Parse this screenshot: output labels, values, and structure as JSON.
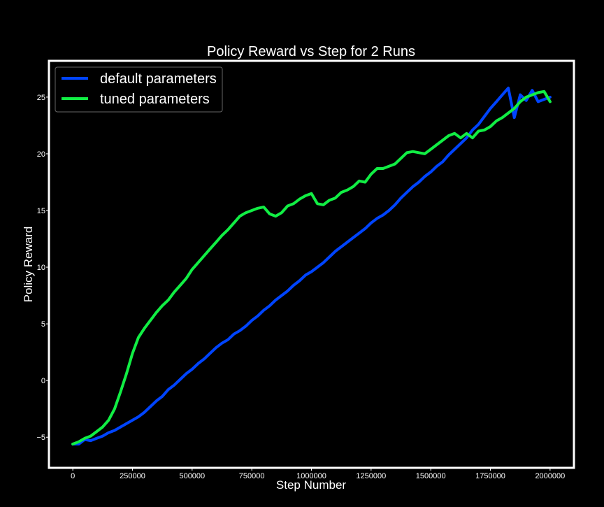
{
  "chart_data": {
    "type": "line",
    "title": "Policy Reward vs Step for 2 Runs",
    "xlabel": "Step Number",
    "ylabel": "Policy Reward",
    "xlim": [
      -100000,
      2100000
    ],
    "ylim": [
      -7.7,
      28.2
    ],
    "xticks": [
      0,
      250000,
      500000,
      750000,
      1000000,
      1250000,
      1500000,
      1750000,
      2000000
    ],
    "yticks": [
      -5,
      0,
      5,
      10,
      15,
      20,
      25
    ],
    "ytick_labels": [
      "−5",
      "0",
      "5",
      "10",
      "15",
      "20",
      "25"
    ],
    "grid": false,
    "legend_position": "top-left",
    "background": "#000000",
    "frame_color": "#ffffff",
    "series": [
      {
        "name": "default parameters",
        "color": "#0044ff",
        "x": [
          0,
          25000,
          50000,
          75000,
          100000,
          125000,
          150000,
          175000,
          200000,
          225000,
          250000,
          275000,
          300000,
          325000,
          350000,
          375000,
          400000,
          425000,
          450000,
          475000,
          500000,
          525000,
          550000,
          575000,
          600000,
          625000,
          650000,
          675000,
          700000,
          725000,
          750000,
          775000,
          800000,
          825000,
          850000,
          875000,
          900000,
          925000,
          950000,
          975000,
          1000000,
          1025000,
          1050000,
          1075000,
          1100000,
          1125000,
          1150000,
          1175000,
          1200000,
          1225000,
          1250000,
          1275000,
          1300000,
          1325000,
          1350000,
          1375000,
          1400000,
          1425000,
          1450000,
          1475000,
          1500000,
          1525000,
          1550000,
          1575000,
          1600000,
          1625000,
          1650000,
          1675000,
          1700000,
          1725000,
          1750000,
          1775000,
          1800000,
          1825000,
          1850000,
          1875000,
          1900000,
          1925000,
          1950000,
          1975000,
          2000000
        ],
        "y": [
          -5.6,
          -5.6,
          -5.2,
          -5.3,
          -5.1,
          -4.9,
          -4.6,
          -4.4,
          -4.1,
          -3.8,
          -3.5,
          -3.2,
          -2.8,
          -2.3,
          -1.8,
          -1.4,
          -0.8,
          -0.4,
          0.1,
          0.6,
          1.0,
          1.5,
          1.9,
          2.4,
          2.9,
          3.3,
          3.6,
          4.1,
          4.4,
          4.8,
          5.3,
          5.7,
          6.2,
          6.6,
          7.1,
          7.5,
          7.9,
          8.4,
          8.8,
          9.3,
          9.6,
          10.0,
          10.4,
          10.9,
          11.4,
          11.8,
          12.2,
          12.6,
          13.0,
          13.4,
          13.9,
          14.3,
          14.6,
          15.0,
          15.5,
          16.1,
          16.6,
          17.1,
          17.5,
          18.0,
          18.4,
          18.9,
          19.3,
          19.9,
          20.4,
          20.9,
          21.4,
          22.1,
          22.6,
          23.3,
          24.0,
          24.6,
          25.2,
          25.8,
          23.2,
          25.2,
          24.7,
          25.6,
          24.6,
          24.8,
          25.0
        ]
      },
      {
        "name": "tuned parameters",
        "color": "#11ee44",
        "x": [
          0,
          25000,
          50000,
          75000,
          100000,
          125000,
          150000,
          175000,
          200000,
          225000,
          250000,
          275000,
          300000,
          325000,
          350000,
          375000,
          400000,
          425000,
          450000,
          475000,
          500000,
          525000,
          550000,
          575000,
          600000,
          625000,
          650000,
          675000,
          700000,
          725000,
          750000,
          775000,
          800000,
          825000,
          850000,
          875000,
          900000,
          925000,
          950000,
          975000,
          1000000,
          1025000,
          1050000,
          1075000,
          1100000,
          1125000,
          1150000,
          1175000,
          1200000,
          1225000,
          1250000,
          1275000,
          1300000,
          1325000,
          1350000,
          1375000,
          1400000,
          1425000,
          1450000,
          1475000,
          1500000,
          1525000,
          1550000,
          1575000,
          1600000,
          1625000,
          1650000,
          1675000,
          1700000,
          1725000,
          1750000,
          1775000,
          1800000,
          1825000,
          1850000,
          1875000,
          1900000,
          1925000,
          1950000,
          1975000,
          2000000
        ],
        "y": [
          -5.6,
          -5.4,
          -5.1,
          -4.9,
          -4.5,
          -4.1,
          -3.5,
          -2.5,
          -1.0,
          0.6,
          2.4,
          3.8,
          4.6,
          5.3,
          6.0,
          6.6,
          7.1,
          7.8,
          8.4,
          9.0,
          9.8,
          10.4,
          11.0,
          11.6,
          12.2,
          12.8,
          13.3,
          13.9,
          14.5,
          14.8,
          15.0,
          15.2,
          15.3,
          14.7,
          14.5,
          14.8,
          15.4,
          15.6,
          16.0,
          16.3,
          16.5,
          15.6,
          15.5,
          15.9,
          16.1,
          16.6,
          16.8,
          17.1,
          17.6,
          17.5,
          18.2,
          18.7,
          18.7,
          18.9,
          19.1,
          19.6,
          20.1,
          20.2,
          20.1,
          20.0,
          20.4,
          20.8,
          21.2,
          21.6,
          21.8,
          21.4,
          21.8,
          21.4,
          22.0,
          22.1,
          22.4,
          22.9,
          23.2,
          23.6,
          24.0,
          24.6,
          25.0,
          25.2,
          25.4,
          25.5,
          24.6
        ]
      }
    ]
  }
}
